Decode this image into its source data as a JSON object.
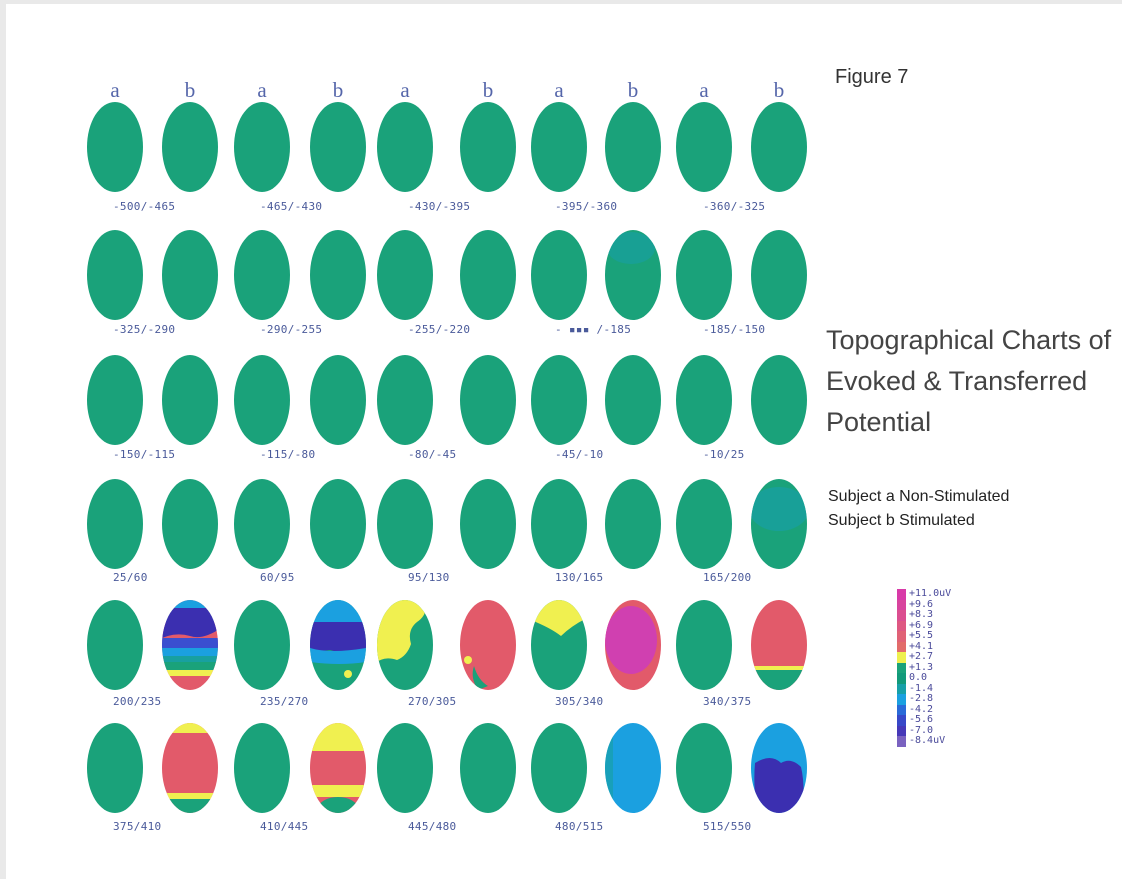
{
  "figure_label": "Figure 7",
  "title_lines": [
    "Topographical Charts of",
    "Evoked & Transferred",
    "Potential"
  ],
  "subjects": [
    "Subject a Non-Stimulated",
    "Subject b  Stimulated"
  ],
  "column_labels": [
    "a",
    "b",
    "a",
    "b",
    "a",
    "b",
    "a",
    "b",
    "a",
    "b"
  ],
  "colors": {
    "green": "#1aa27a",
    "green_dark": "#178f6c",
    "teal": "#18a0a0",
    "blue_light": "#1ba0e0",
    "blue": "#3a4fd0",
    "indigo": "#3b2fb0",
    "yellow": "#f0f050",
    "salmon": "#e25a6a",
    "pink": "#e04c9c",
    "magenta": "#d040b0"
  },
  "rows": [
    {
      "ranges": [
        "-500/-465",
        "-465/-430",
        "-430/-395",
        "-395/-360",
        "-360/-325"
      ],
      "maps": [
        "green",
        "green",
        "green",
        "green",
        "green",
        "green",
        "green",
        "green",
        "green",
        "green"
      ]
    },
    {
      "ranges": [
        "-325/-290",
        "-290/-255",
        "-255/-220",
        "- ▪▪▪ /-185",
        "-185/-150"
      ],
      "maps": [
        "green",
        "green",
        "green",
        "green",
        "green",
        "green",
        "green",
        "green-teal",
        "green",
        "green"
      ]
    },
    {
      "ranges": [
        "-150/-115",
        "-115/-80",
        "-80/-45",
        "-45/-10",
        "-10/25"
      ],
      "maps": [
        "green",
        "green",
        "green",
        "green",
        "green",
        "green",
        "green",
        "green",
        "green",
        "green"
      ]
    },
    {
      "ranges": [
        "25/60",
        "60/95",
        "95/130",
        "130/165",
        "165/200"
      ],
      "maps": [
        "green",
        "green",
        "green",
        "green",
        "green",
        "green",
        "green",
        "green",
        "green",
        "teal-top"
      ]
    },
    {
      "ranges": [
        "200/235",
        "235/270",
        "270/305",
        "305/340",
        "340/375"
      ],
      "maps": [
        "green",
        "blue-stack",
        "green",
        "blue-mid",
        "yellow-left",
        "salmon",
        "yellow-v",
        "magenta",
        "green",
        "salmon-bottom"
      ]
    },
    {
      "ranges": [
        "375/410",
        "410/445",
        "445/480",
        "480/515",
        "515/550"
      ],
      "maps": [
        "green",
        "salmon-yellow",
        "green",
        "yellow-salmon",
        "green",
        "green",
        "green",
        "light-blue",
        "green",
        "blue-deep"
      ]
    }
  ],
  "legend": [
    {
      "label": "+11.0uV",
      "color": "#d83aa8"
    },
    {
      "label": "+9.6",
      "color": "#d8449e"
    },
    {
      "label": "+8.3",
      "color": "#db4e90"
    },
    {
      "label": "+6.9",
      "color": "#de5882"
    },
    {
      "label": "+5.5",
      "color": "#e06276"
    },
    {
      "label": "+4.1",
      "color": "#e26c6a"
    },
    {
      "label": "+2.7",
      "color": "#eef04e"
    },
    {
      "label": "+1.3",
      "color": "#1aa27a"
    },
    {
      "label": "0.0",
      "color": "#129a7a"
    },
    {
      "label": "-1.4",
      "color": "#17a0a8"
    },
    {
      "label": "-2.8",
      "color": "#1ba0e0"
    },
    {
      "label": "-4.2",
      "color": "#2a6ad8"
    },
    {
      "label": "-5.6",
      "color": "#3848c8"
    },
    {
      "label": "-7.0",
      "color": "#4638b8"
    },
    {
      "label": "-8.4uV",
      "color": "#7a62c0"
    }
  ]
}
